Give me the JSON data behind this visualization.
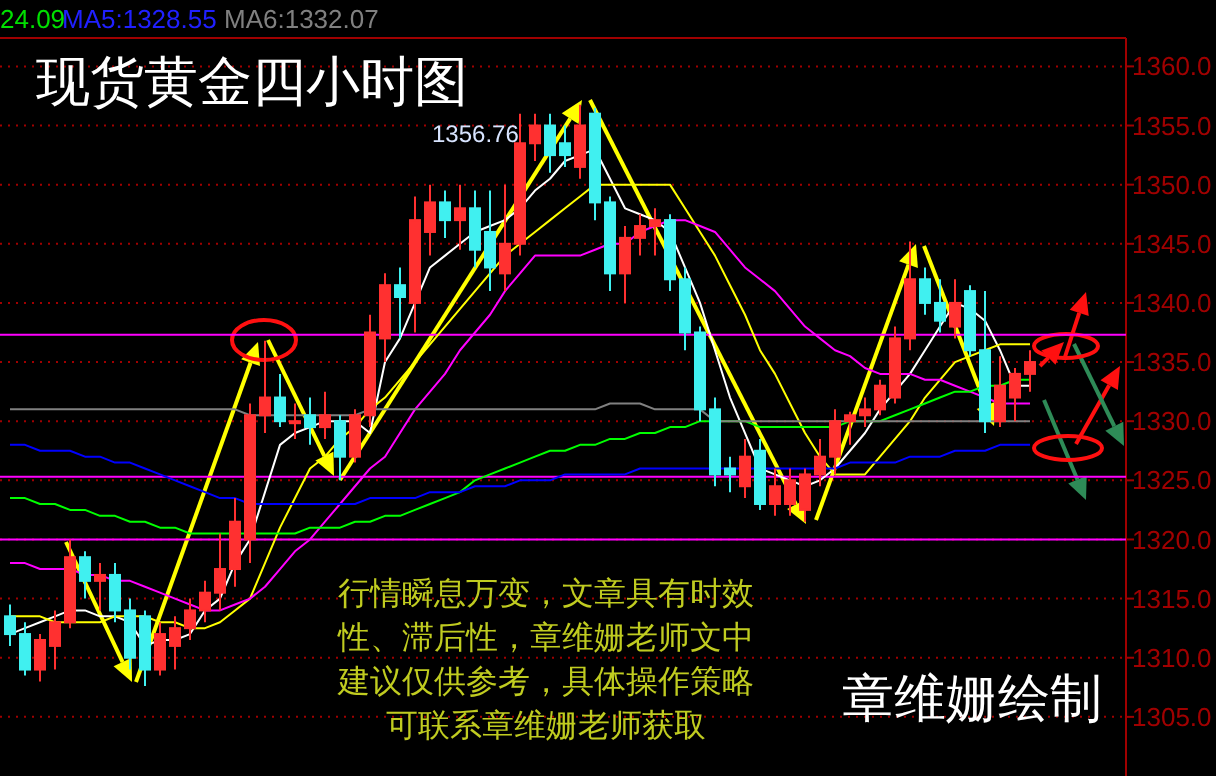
{
  "chart_data": {
    "type": "candlestick",
    "title": "现货黄金四小时图",
    "annotations": [
      "24.09",
      "MA5:1328.55",
      "MA6:1332.07",
      "1356.76",
      "行情瞬息万变，文章具有时效",
      "性、滞后性，章维姗老师文中",
      "建议仅供参考，具体操作策略",
      "可联系章维姗老师获取",
      "章维姗绘制"
    ],
    "categories": [
      null,
      null,
      null,
      null,
      null,
      null,
      null,
      null,
      null,
      null,
      null,
      null,
      null,
      null,
      null,
      null,
      null,
      null,
      null,
      null,
      null,
      null,
      null,
      null,
      null,
      null,
      null,
      null,
      null,
      null,
      null,
      null,
      null,
      null,
      null,
      null,
      null,
      null,
      null,
      null,
      null,
      null,
      null,
      null,
      null,
      null,
      null,
      null,
      null,
      null,
      null,
      null,
      null,
      null,
      null,
      null,
      null,
      null,
      null,
      null,
      null,
      null,
      null,
      null,
      null,
      null,
      null,
      null,
      null
    ],
    "ylim": [
      1300,
      1362.4
    ],
    "yticks": [
      {
        "value": 1305,
        "label": "1305.0"
      },
      {
        "value": 1310,
        "label": "1310.0"
      },
      {
        "value": 1315,
        "label": "1315.0"
      },
      {
        "value": 1320,
        "label": "1320.0"
      },
      {
        "value": 1325,
        "label": "1325.0"
      },
      {
        "value": 1330,
        "label": "1330.0"
      },
      {
        "value": 1335,
        "label": "1335.0"
      },
      {
        "value": 1340,
        "label": "1340.0"
      },
      {
        "value": 1345,
        "label": "1345.0"
      },
      {
        "value": 1350,
        "label": "1350.0"
      },
      {
        "value": 1355,
        "label": "1355.0"
      },
      {
        "value": 1360,
        "label": "1360.0"
      }
    ],
    "colors": [
      "#40f0f0",
      "#40f0f0",
      "#ff3030",
      "#ff3030",
      "#ff3030",
      "#40f0f0",
      "#ff3030",
      "#40f0f0",
      "#40f0f0",
      "#40f0f0",
      "#ff3030",
      "#ff3030",
      "#ff3030",
      "#ff3030",
      "#ff3030",
      "#ff3030",
      "#ff3030",
      "#ff3030",
      "#40f0f0",
      "#ff3030",
      "#40f0f0",
      "#ff3030",
      "#40f0f0",
      "#ff3030",
      "#ff3030",
      "#ff3030",
      "#40f0f0",
      "#ff3030",
      "#ff3030",
      "#40f0f0",
      "#ff3030",
      "#40f0f0",
      "#40f0f0",
      "#ff3030",
      "#ff3030",
      "#ff3030",
      "#40f0f0",
      "#40f0f0",
      "#ff3030",
      "#40f0f0",
      "#40f0f0",
      "#ff3030",
      "#ff3030",
      "#ff3030",
      "#40f0f0",
      "#40f0f0",
      "#40f0f0",
      "#40f0f0",
      "#40f0f0",
      "#ff3030",
      "#40f0f0",
      "#ff3030",
      "#ff3030",
      "#ff3030",
      "#ff3030",
      "#ff3030",
      "#ff3030",
      "#ff3030",
      "#ff3030",
      "#ff3030",
      "#ff3030",
      "#40f0f0",
      "#40f0f0",
      "#ff3030",
      "#40f0f0",
      "#40f0f0",
      "#ff3030",
      "#ff3030",
      "#ff3030"
    ],
    "ohlc": [
      [
        1313.5,
        1314.5,
        1311,
        1312
      ],
      [
        1312,
        1313,
        1308.5,
        1309
      ],
      [
        1309,
        1312,
        1308,
        1311.5
      ],
      [
        1311,
        1314,
        1309,
        1313
      ],
      [
        1313,
        1320,
        1312.5,
        1318.5
      ],
      [
        1318.5,
        1319,
        1315,
        1316.5
      ],
      [
        1316.5,
        1318,
        1314,
        1317
      ],
      [
        1317,
        1318,
        1313,
        1314
      ],
      [
        1314,
        1315,
        1309,
        1310
      ],
      [
        1313.5,
        1314,
        1307.6,
        1309
      ],
      [
        1309,
        1313,
        1308.5,
        1312
      ],
      [
        1311,
        1313.5,
        1309,
        1312.5
      ],
      [
        1312.5,
        1315,
        1311.5,
        1314
      ],
      [
        1314,
        1316.5,
        1313,
        1315.5
      ],
      [
        1315.5,
        1320.5,
        1314,
        1317.5
      ],
      [
        1317.5,
        1323.5,
        1316,
        1321.5
      ],
      [
        1320,
        1331.5,
        1318,
        1330.5
      ],
      [
        1330.5,
        1336.8,
        1329,
        1332
      ],
      [
        1332,
        1334,
        1329.5,
        1330
      ],
      [
        1330,
        1331.5,
        1328.5,
        1330
      ],
      [
        1330.5,
        1332,
        1328,
        1329.5
      ],
      [
        1329.5,
        1332.5,
        1328.5,
        1330.5
      ],
      [
        1330,
        1330.5,
        1325,
        1327
      ],
      [
        1327,
        1331,
        1326.5,
        1330.5
      ],
      [
        1330.5,
        1339,
        1329.5,
        1337.5
      ],
      [
        1337,
        1342.5,
        1335,
        1341.5
      ],
      [
        1341.5,
        1343,
        1337,
        1340.5
      ],
      [
        1340,
        1349,
        1337.5,
        1347
      ],
      [
        1346,
        1350,
        1344,
        1348.5
      ],
      [
        1348.5,
        1349.5,
        1345.5,
        1347
      ],
      [
        1347,
        1350,
        1344.5,
        1348
      ],
      [
        1348,
        1349.5,
        1343,
        1344.5
      ],
      [
        1346,
        1349.5,
        1341,
        1343
      ],
      [
        1342.5,
        1350,
        1341,
        1345
      ],
      [
        1345,
        1356,
        1344,
        1353.5
      ],
      [
        1353.5,
        1356,
        1352,
        1355
      ],
      [
        1355,
        1356,
        1351,
        1352.5
      ],
      [
        1353.5,
        1355,
        1351.5,
        1352.5
      ],
      [
        1351.5,
        1356.76,
        1350.5,
        1355
      ],
      [
        1356,
        1356.5,
        1347,
        1348.5
      ],
      [
        1348.5,
        1349,
        1341,
        1342.5
      ],
      [
        1342.5,
        1346.5,
        1340,
        1345.5
      ],
      [
        1345.5,
        1347.5,
        1344,
        1346.5
      ],
      [
        1346.5,
        1348,
        1344,
        1347
      ],
      [
        1347,
        1347.5,
        1341,
        1342
      ],
      [
        1342,
        1343,
        1336,
        1337.5
      ],
      [
        1337.5,
        1338,
        1330,
        1331
      ],
      [
        1331,
        1332,
        1324.5,
        1325.5
      ],
      [
        1326,
        1327,
        1324,
        1325.5
      ],
      [
        1324.5,
        1328.5,
        1323.5,
        1327
      ],
      [
        1327.5,
        1328.5,
        1322.5,
        1323
      ],
      [
        1323,
        1326,
        1322,
        1324.5
      ],
      [
        1323,
        1326,
        1322,
        1325
      ],
      [
        1322.5,
        1326,
        1321.5,
        1325.5
      ],
      [
        1325.5,
        1328.5,
        1324.5,
        1327
      ],
      [
        1327,
        1331,
        1325.5,
        1330
      ],
      [
        1330,
        1330.8,
        1328,
        1330.5
      ],
      [
        1330.5,
        1332,
        1329.5,
        1331
      ],
      [
        1331,
        1333.5,
        1330.5,
        1333
      ],
      [
        1332,
        1338,
        1331.5,
        1337
      ],
      [
        1337,
        1345.2,
        1336,
        1342
      ],
      [
        1342,
        1343,
        1339,
        1340
      ],
      [
        1340,
        1342,
        1337.5,
        1338.5
      ],
      [
        1338,
        1342,
        1337,
        1340
      ],
      [
        1341,
        1341.5,
        1335.5,
        1336
      ],
      [
        1336,
        1341,
        1329,
        1330
      ],
      [
        1330,
        1335.5,
        1329.5,
        1333
      ],
      [
        1332,
        1334.5,
        1330,
        1334
      ],
      [
        1334,
        1336,
        1332.5,
        1335
      ]
    ],
    "series": [
      {
        "type": "line",
        "color": "#ffffff",
        "values": [
          1312,
          1312.5,
          1313,
          1313.5,
          1314,
          1314,
          1313.5,
          1313.5,
          1313,
          1311,
          1311.5,
          1311.5,
          1312,
          1314,
          1315,
          1318,
          1320,
          1324,
          1328,
          1329,
          1329.5,
          1330,
          1330,
          1330,
          1329,
          1335,
          1337,
          1340,
          1343,
          1344,
          1345,
          1346,
          1346.5,
          1347,
          1348,
          1349.5,
          1350.5,
          1352,
          1352.5,
          1353,
          1350.5,
          1348,
          1347.5,
          1347,
          1346,
          1343,
          1340,
          1336,
          1332,
          1329,
          1326,
          1325.5,
          1325,
          1324.5,
          1325,
          1326,
          1327.5,
          1329,
          1331,
          1332.5,
          1334,
          1336,
          1338,
          1340,
          1339.5,
          1338.5,
          1336,
          1333,
          1333
        ]
      },
      {
        "type": "line",
        "color": "#ffff00",
        "values": [
          1313.5,
          1313.5,
          1313.5,
          1313,
          1313,
          1313,
          1313,
          1313.5,
          1313.5,
          1313.5,
          1313,
          1313,
          1312.5,
          1312.5,
          1313,
          1314,
          1315,
          1318,
          1321,
          1323.5,
          1326,
          1327,
          1328.5,
          1329.5,
          1331,
          1332,
          1333.5,
          1335,
          1336.5,
          1338,
          1339.5,
          1341,
          1342.5,
          1344,
          1345,
          1346,
          1347,
          1348,
          1349,
          1350,
          1350,
          1350,
          1350,
          1350,
          1350,
          1348,
          1346,
          1344,
          1341.5,
          1339,
          1336,
          1334,
          1331.5,
          1329,
          1327,
          1325.5,
          1325.5,
          1325.5,
          1327,
          1328.5,
          1330,
          1332,
          1333.5,
          1335,
          1335.5,
          1336,
          1336.5,
          1336.5,
          1336.5
        ]
      },
      {
        "type": "line",
        "color": "#ff00ff",
        "values": [
          1318,
          1318,
          1317.5,
          1317.5,
          1317.5,
          1317,
          1317,
          1316.5,
          1316.5,
          1316,
          1315.5,
          1315,
          1314.5,
          1314,
          1314,
          1314.5,
          1315,
          1316,
          1317.5,
          1319,
          1320,
          1321.5,
          1323,
          1324.5,
          1326,
          1327,
          1329,
          1331,
          1332.5,
          1334,
          1336,
          1337.5,
          1339,
          1341,
          1342.5,
          1344,
          1344,
          1344,
          1344,
          1344.5,
          1345,
          1345,
          1346,
          1346.5,
          1347,
          1347,
          1346.5,
          1346,
          1344.5,
          1343,
          1342,
          1341,
          1339.5,
          1338,
          1337,
          1336,
          1335.5,
          1334.5,
          1334,
          1334,
          1334,
          1333.5,
          1333.5,
          1333,
          1332.5,
          1332,
          1331.5,
          1331.5,
          1331.5
        ]
      },
      {
        "type": "line",
        "color": "#00ff00",
        "values": [
          1323.5,
          1323.5,
          1323,
          1323,
          1322.5,
          1322.5,
          1322,
          1322,
          1321.5,
          1321.5,
          1321,
          1321,
          1320.5,
          1320.5,
          1320.5,
          1320.5,
          1320.5,
          1320.5,
          1320.5,
          1320.5,
          1321,
          1321,
          1321,
          1321.5,
          1321.5,
          1322,
          1322,
          1322.5,
          1323,
          1323.5,
          1324,
          1325,
          1325.5,
          1326,
          1326.5,
          1327,
          1327.5,
          1327.5,
          1328,
          1328,
          1328.5,
          1328.5,
          1329,
          1329,
          1329.5,
          1329.5,
          1330,
          1330,
          1330,
          1330,
          1329.5,
          1329.5,
          1329.5,
          1329.5,
          1329.5,
          1329.5,
          1330,
          1330,
          1330,
          1330.5,
          1331,
          1331.5,
          1332,
          1332.5,
          1332.5,
          1333,
          1333,
          1333.5,
          1333.5
        ]
      },
      {
        "type": "line",
        "color": "#0000ff",
        "values": [
          1328,
          1328,
          1327.5,
          1327.5,
          1327.5,
          1327,
          1327,
          1326.5,
          1326.5,
          1326,
          1325.5,
          1325,
          1324.5,
          1324,
          1323.5,
          1323.5,
          1323,
          1323,
          1323,
          1323,
          1323,
          1323,
          1323,
          1323,
          1323.5,
          1323.5,
          1323.5,
          1323.5,
          1324,
          1324,
          1324,
          1324.5,
          1324.5,
          1324.5,
          1325,
          1325,
          1325,
          1325.5,
          1325.5,
          1325.5,
          1325.5,
          1325.5,
          1326,
          1326,
          1326,
          1326,
          1326,
          1326,
          1326,
          1326,
          1326,
          1326,
          1326,
          1326,
          1326,
          1326,
          1326.5,
          1326.5,
          1326.5,
          1326.5,
          1327,
          1327,
          1327,
          1327.5,
          1327.5,
          1327.5,
          1328,
          1328,
          1328
        ]
      },
      {
        "type": "line",
        "color": "#808080",
        "values": [
          1331,
          1331,
          1331,
          1331,
          1331,
          1331,
          1331,
          1331,
          1331,
          1331,
          1331,
          1331,
          1331,
          1331,
          1331,
          1331,
          1330.5,
          1330.5,
          1330.5,
          1330.5,
          1330.5,
          1330.5,
          1330.5,
          1330.5,
          1331,
          1331,
          1331,
          1331,
          1331,
          1331,
          1331,
          1331,
          1331,
          1331,
          1331,
          1331,
          1331,
          1331,
          1331,
          1331,
          1331.5,
          1331.5,
          1331.5,
          1331,
          1331,
          1331,
          1331,
          1330,
          1330,
          1330,
          1330,
          1330,
          1330,
          1330,
          1330,
          1330,
          1330,
          1330,
          1330,
          1330,
          1330,
          1330,
          1330,
          1330,
          1330,
          1330,
          1330,
          1330,
          1330
        ]
      }
    ],
    "ref_lines": [
      {
        "axis": "y",
        "value": 1337.3,
        "color": "#ff00ff"
      },
      {
        "axis": "y",
        "value": 1325.3,
        "color": "#ff00ff"
      },
      {
        "axis": "y",
        "value": 1320,
        "color": "#ff00ff"
      }
    ],
    "grid": "y",
    "tick_labels": "y"
  }
}
